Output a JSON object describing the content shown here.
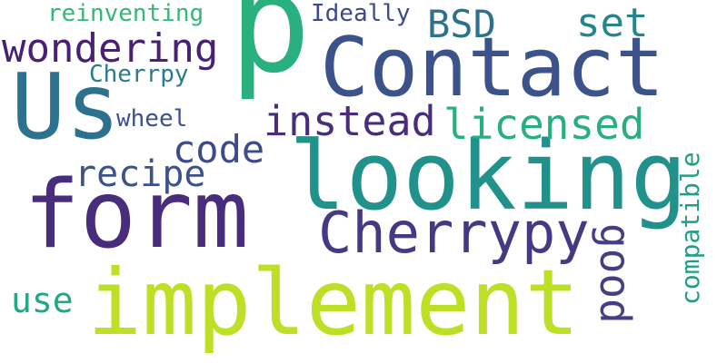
{
  "word_cloud": {
    "words": [
      {
        "key": "p",
        "text": "p",
        "color": "#2ab07f"
      },
      {
        "key": "contact",
        "text": "Contact",
        "color": "#3b528b"
      },
      {
        "key": "us",
        "text": "Us",
        "color": "#2c728e"
      },
      {
        "key": "looking",
        "text": "looking",
        "color": "#21918c"
      },
      {
        "key": "form",
        "text": "form",
        "color": "#472d7b"
      },
      {
        "key": "implement",
        "text": "implement",
        "color": "#bddf26"
      },
      {
        "key": "cherrypy_large",
        "text": "Cherrypy",
        "color": "#443983"
      },
      {
        "key": "wondering",
        "text": "wondering",
        "color": "#482173"
      },
      {
        "key": "instead",
        "text": "instead",
        "color": "#472d7b"
      },
      {
        "key": "licensed",
        "text": "licensed",
        "color": "#28ae80"
      },
      {
        "key": "code",
        "text": "code",
        "color": "#3e4a89"
      },
      {
        "key": "recipe",
        "text": "recipe",
        "color": "#3b528b"
      },
      {
        "key": "bsd",
        "text": "BSD",
        "color": "#2c728e"
      },
      {
        "key": "set",
        "text": "set",
        "color": "#25848e"
      },
      {
        "key": "reinventing",
        "text": "reinventing",
        "color": "#35b779"
      },
      {
        "key": "ideally",
        "text": "Ideally",
        "color": "#3e4a89"
      },
      {
        "key": "cherrypy_small",
        "text": "Cherrpy",
        "color": "#287c8e"
      },
      {
        "key": "wheel",
        "text": "wheel",
        "color": "#3b528b"
      },
      {
        "key": "use",
        "text": "use",
        "color": "#22a884"
      },
      {
        "key": "good",
        "text": "good",
        "color": "#433e85"
      },
      {
        "key": "compatible",
        "text": "compatible",
        "color": "#1f9e89"
      }
    ]
  }
}
